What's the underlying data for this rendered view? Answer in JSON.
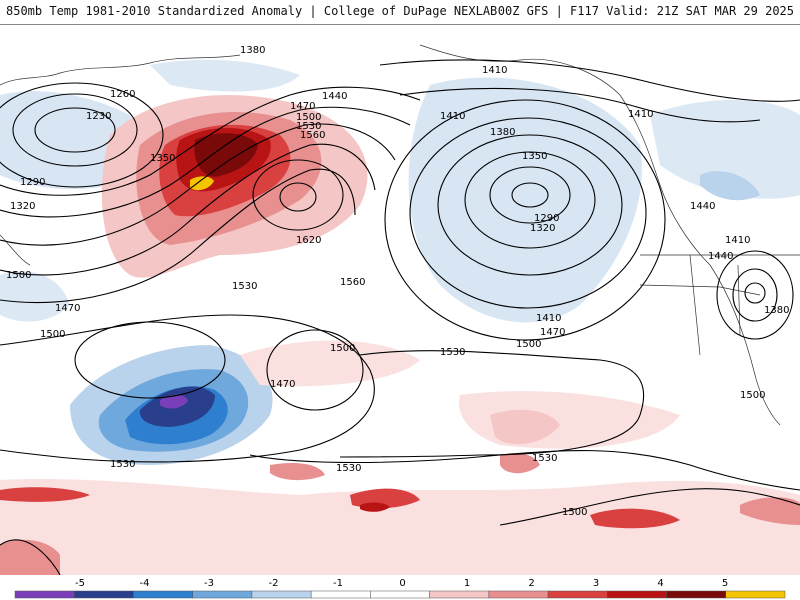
{
  "header": {
    "left_title": "850mb Temp 1981-2010 Standardized Anomaly | College of DuPage NEXLAB",
    "right_title": "00Z GFS | F117 Valid: 21Z SAT MAR 29 2025"
  },
  "contour_labels": [
    "1380",
    "1410",
    "1260",
    "1230",
    "1440",
    "1470",
    "1500",
    "1530",
    "1560",
    "1350",
    "1290",
    "1320",
    "1620",
    "1410",
    "1380",
    "1350",
    "1290",
    "1320",
    "1440",
    "1410",
    "1440",
    "1380",
    "1410",
    "1470",
    "1500",
    "1560",
    "1530",
    "1500",
    "1470",
    "1500",
    "1530",
    "1530",
    "1530",
    "1530",
    "1500",
    "1500",
    "1410",
    "1470",
    "1500"
  ],
  "legend": {
    "tick_labels": [
      "-5",
      "-4",
      "-3",
      "-2",
      "-1",
      "0",
      "1",
      "2",
      "3",
      "4",
      "5"
    ],
    "colors": [
      "#7a3fb8",
      "#2a3f8c",
      "#2f7fd0",
      "#6fa8dc",
      "#b9d3ec",
      "#ffffff",
      "#ffffff",
      "#f5c6c6",
      "#e89090",
      "#d94040",
      "#b81414",
      "#7a0a0a",
      "#f5c400"
    ]
  }
}
